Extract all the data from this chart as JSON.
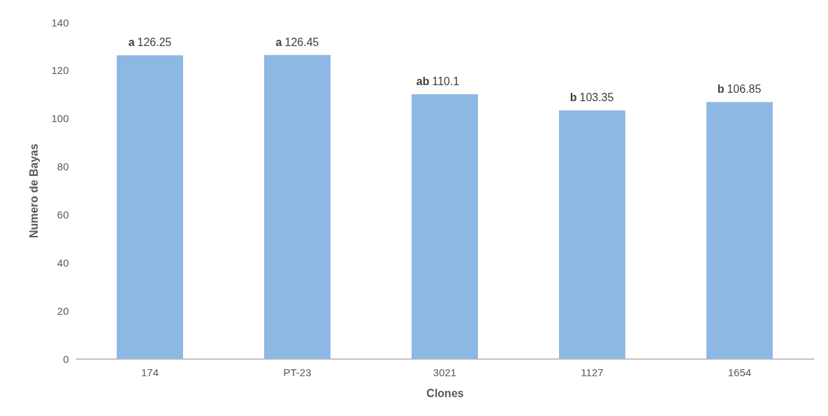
{
  "chart_data": {
    "type": "bar",
    "xlabel": "Clones",
    "ylabel": "Numero de Bayas",
    "categories": [
      "174",
      "PT-23",
      "3021",
      "1127",
      "1654"
    ],
    "values": [
      126.25,
      126.45,
      110.1,
      103.35,
      106.85
    ],
    "value_labels": [
      "a 126.25",
      "a 126.45",
      "ab 110.1",
      "b 103.35",
      "b 106.85"
    ],
    "color": "#8db8e3",
    "ylim": [
      0,
      140
    ],
    "yticks": [
      0,
      20,
      40,
      60,
      80,
      100,
      120,
      140
    ],
    "grid": false
  }
}
